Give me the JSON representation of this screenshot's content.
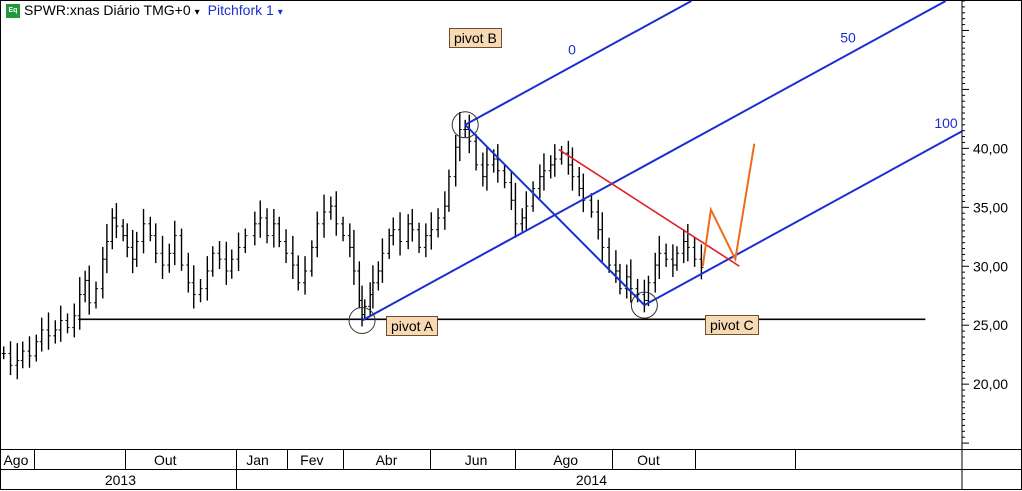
{
  "header": {
    "badge": "Eq",
    "symbol": "SPWR:xnas Diário TMG+0",
    "study": "Pitchfork 1",
    "dropdown_glyph": "▾"
  },
  "colors": {
    "price_bars": "#000000",
    "pitchfork": "#1a2fd0",
    "support_line": "#000000",
    "resistance_line": "#e02020",
    "projection": "#f06a1c",
    "label_bg": "#f7d9b4"
  },
  "chart_data": {
    "type": "line",
    "title": "SPWR:xnas Diário TMG+0",
    "xlabel": "",
    "ylabel": "",
    "ylim": [
      14.5,
      52.5
    ],
    "y_ticks": [
      "20,00",
      "25,00",
      "30,00",
      "35,00",
      "40,00"
    ],
    "x_month_labels": [
      "Ago",
      "Out",
      "Jan",
      "Fev",
      "Abr",
      "Jun",
      "Ago",
      "Out"
    ],
    "x_year_labels": [
      "2013",
      "2014"
    ],
    "grid": false,
    "pivots": [
      {
        "label": "pivot A",
        "date": "2014-03-19",
        "price": 25.4
      },
      {
        "label": "pivot B",
        "date": "2014-06-03",
        "price": 42.0
      },
      {
        "label": "pivot C",
        "date": "2014-10-13",
        "price": 26.7
      }
    ],
    "pitchfork_levels": [
      "0",
      "50",
      "100"
    ],
    "series": [
      {
        "name": "SPWR",
        "values": [
          [
            "2013-06-28",
            22.6
          ],
          [
            "2013-07-03",
            21.6
          ],
          [
            "2013-07-08",
            22.0
          ],
          [
            "2013-07-12",
            22.8
          ],
          [
            "2013-07-17",
            22.4
          ],
          [
            "2013-07-22",
            23.6
          ],
          [
            "2013-07-26",
            24.6
          ],
          [
            "2013-07-31",
            24.1
          ],
          [
            "2013-08-05",
            24.6
          ],
          [
            "2013-08-09",
            25.4
          ],
          [
            "2013-08-14",
            24.8
          ],
          [
            "2013-08-19",
            25.8
          ],
          [
            "2013-08-23",
            27.6
          ],
          [
            "2013-08-27",
            28.8
          ],
          [
            "2013-08-30",
            26.9
          ],
          [
            "2013-09-04",
            28.1
          ],
          [
            "2013-09-09",
            30.6
          ],
          [
            "2013-09-12",
            32.1
          ],
          [
            "2013-09-16",
            34.1
          ],
          [
            "2013-09-19",
            33.4
          ],
          [
            "2013-09-24",
            32.6
          ],
          [
            "2013-09-27",
            31.6
          ],
          [
            "2013-10-01",
            30.6
          ],
          [
            "2013-10-04",
            32.1
          ],
          [
            "2013-10-09",
            33.6
          ],
          [
            "2013-10-14",
            32.6
          ],
          [
            "2013-10-18",
            31.1
          ],
          [
            "2013-10-23",
            30.1
          ],
          [
            "2013-10-28",
            31.1
          ],
          [
            "2013-11-01",
            32.6
          ],
          [
            "2013-11-06",
            30.1
          ],
          [
            "2013-11-11",
            28.6
          ],
          [
            "2013-11-15",
            27.6
          ],
          [
            "2013-11-20",
            28.1
          ],
          [
            "2013-11-25",
            29.6
          ],
          [
            "2013-11-29",
            31.1
          ],
          [
            "2013-12-04",
            30.6
          ],
          [
            "2013-12-09",
            29.6
          ],
          [
            "2013-12-13",
            30.6
          ],
          [
            "2013-12-18",
            31.6
          ],
          [
            "2013-12-23",
            32.6
          ],
          [
            "2013-12-30",
            33.6
          ],
          [
            "2014-01-03",
            34.1
          ],
          [
            "2014-01-08",
            32.6
          ],
          [
            "2014-01-13",
            33.6
          ],
          [
            "2014-01-17",
            32.1
          ],
          [
            "2014-01-22",
            31.1
          ],
          [
            "2014-01-27",
            30.1
          ],
          [
            "2014-01-31",
            28.6
          ],
          [
            "2014-02-05",
            29.6
          ],
          [
            "2014-02-10",
            31.6
          ],
          [
            "2014-02-14",
            33.6
          ],
          [
            "2014-02-19",
            34.6
          ],
          [
            "2014-02-24",
            35.1
          ],
          [
            "2014-02-28",
            33.6
          ],
          [
            "2014-03-05",
            32.6
          ],
          [
            "2014-03-10",
            31.6
          ],
          [
            "2014-03-13",
            29.6
          ],
          [
            "2014-03-17",
            27.1
          ],
          [
            "2014-03-19",
            25.9
          ],
          [
            "2014-03-21",
            26.6
          ],
          [
            "2014-03-25",
            27.6
          ],
          [
            "2014-03-27",
            28.6
          ],
          [
            "2014-03-31",
            29.6
          ],
          [
            "2014-04-03",
            31.1
          ],
          [
            "2014-04-08",
            32.6
          ],
          [
            "2014-04-11",
            33.1
          ],
          [
            "2014-04-16",
            32.1
          ],
          [
            "2014-04-22",
            33.6
          ],
          [
            "2014-04-25",
            33.1
          ],
          [
            "2014-04-30",
            31.6
          ],
          [
            "2014-05-05",
            32.6
          ],
          [
            "2014-05-09",
            33.1
          ],
          [
            "2014-05-14",
            34.1
          ],
          [
            "2014-05-19",
            35.1
          ],
          [
            "2014-05-22",
            37.6
          ],
          [
            "2014-05-27",
            40.1
          ],
          [
            "2014-05-30",
            41.6
          ],
          [
            "2014-06-03",
            41.6
          ],
          [
            "2014-06-06",
            40.6
          ],
          [
            "2014-06-11",
            38.6
          ],
          [
            "2014-06-16",
            37.6
          ],
          [
            "2014-06-19",
            38.6
          ],
          [
            "2014-06-24",
            39.1
          ],
          [
            "2014-06-27",
            38.1
          ],
          [
            "2014-07-02",
            37.1
          ],
          [
            "2014-07-07",
            35.6
          ],
          [
            "2014-07-10",
            33.6
          ],
          [
            "2014-07-15",
            34.1
          ],
          [
            "2014-07-18",
            35.1
          ],
          [
            "2014-07-23",
            36.6
          ],
          [
            "2014-07-28",
            37.6
          ],
          [
            "2014-07-31",
            38.1
          ],
          [
            "2014-08-05",
            38.6
          ],
          [
            "2014-08-08",
            39.1
          ],
          [
            "2014-08-13",
            39.6
          ],
          [
            "2014-08-18",
            38.6
          ],
          [
            "2014-08-21",
            37.6
          ],
          [
            "2014-08-26",
            36.6
          ],
          [
            "2014-08-29",
            35.6
          ],
          [
            "2014-09-04",
            34.6
          ],
          [
            "2014-09-09",
            33.1
          ],
          [
            "2014-09-12",
            31.6
          ],
          [
            "2014-09-17",
            30.1
          ],
          [
            "2014-09-22",
            29.6
          ],
          [
            "2014-09-25",
            28.1
          ],
          [
            "2014-09-30",
            29.1
          ],
          [
            "2014-10-03",
            28.1
          ],
          [
            "2014-10-08",
            27.6
          ],
          [
            "2014-10-13",
            27.1
          ],
          [
            "2014-10-16",
            28.6
          ],
          [
            "2014-10-21",
            30.1
          ],
          [
            "2014-10-24",
            31.1
          ],
          [
            "2014-10-29",
            30.6
          ],
          [
            "2014-11-03",
            30.1
          ],
          [
            "2014-11-06",
            31.1
          ],
          [
            "2014-11-11",
            32.1
          ],
          [
            "2014-11-14",
            31.6
          ],
          [
            "2014-11-19",
            30.6
          ],
          [
            "2014-11-24",
            29.9
          ]
        ]
      }
    ]
  },
  "annotations": {
    "support_line": {
      "price": 25.5,
      "from": "2013-08-22",
      "to": "2015-05-08"
    },
    "resistance_line": {
      "from": [
        "2014-08-11",
        39.9
      ],
      "to": [
        "2014-12-22",
        30.0
      ]
    },
    "projection": [
      [
        "2014-11-25",
        30.0
      ],
      [
        "2014-12-01",
        34.8
      ],
      [
        "2014-12-19",
        30.6
      ],
      [
        "2015-01-02",
        40.4
      ]
    ]
  }
}
